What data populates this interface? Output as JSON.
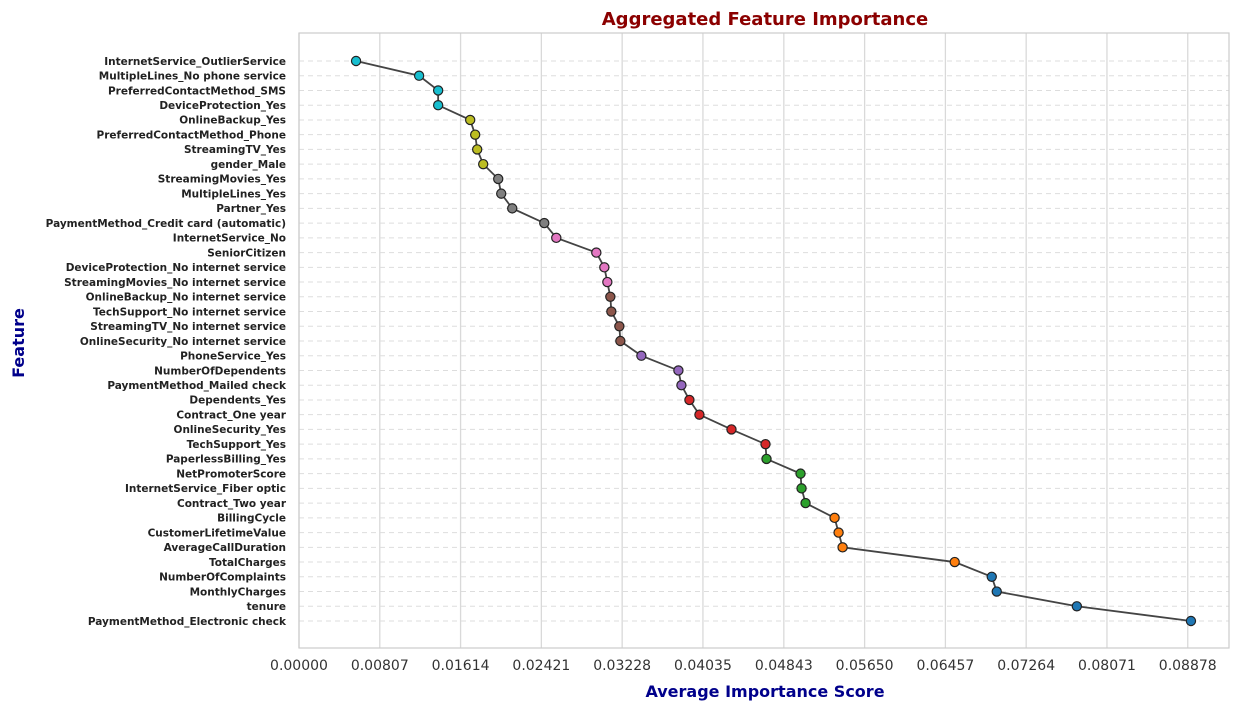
{
  "chart_data": {
    "type": "scatter",
    "title": "Aggregated Feature Importance",
    "xlabel": "Average Importance Score",
    "ylabel": "Feature",
    "xlim": [
      0.0,
      0.0929
    ],
    "xticks": [
      "0.00000",
      "0.00807",
      "0.01614",
      "0.02421",
      "0.03228",
      "0.04035",
      "0.04843",
      "0.05650",
      "0.06457",
      "0.07264",
      "0.08071",
      "0.08878"
    ],
    "grid": true,
    "connecting_line": true,
    "features": [
      {
        "name": "InternetService_OutlierService",
        "value": 0.0057,
        "color": "#17becf"
      },
      {
        "name": "MultipleLines_No phone service",
        "value": 0.012,
        "color": "#17becf"
      },
      {
        "name": "PreferredContactMethod_SMS",
        "value": 0.0139,
        "color": "#17becf"
      },
      {
        "name": "DeviceProtection_Yes",
        "value": 0.0139,
        "color": "#17becf"
      },
      {
        "name": "OnlineBackup_Yes",
        "value": 0.0171,
        "color": "#bcbd22"
      },
      {
        "name": "PreferredContactMethod_Phone",
        "value": 0.0176,
        "color": "#bcbd22"
      },
      {
        "name": "StreamingTV_Yes",
        "value": 0.0178,
        "color": "#bcbd22"
      },
      {
        "name": "gender_Male",
        "value": 0.0184,
        "color": "#bcbd22"
      },
      {
        "name": "StreamingMovies_Yes",
        "value": 0.0199,
        "color": "#7f7f7f"
      },
      {
        "name": "MultipleLines_Yes",
        "value": 0.0202,
        "color": "#7f7f7f"
      },
      {
        "name": "Partner_Yes",
        "value": 0.0213,
        "color": "#7f7f7f"
      },
      {
        "name": "PaymentMethod_Credit card (automatic)",
        "value": 0.0245,
        "color": "#7f7f7f"
      },
      {
        "name": "InternetService_No",
        "value": 0.0257,
        "color": "#e377c2"
      },
      {
        "name": "SeniorCitizen",
        "value": 0.0297,
        "color": "#e377c2"
      },
      {
        "name": "DeviceProtection_No internet service",
        "value": 0.0305,
        "color": "#e377c2"
      },
      {
        "name": "StreamingMovies_No internet service",
        "value": 0.0308,
        "color": "#e377c2"
      },
      {
        "name": "OnlineBackup_No internet service",
        "value": 0.0311,
        "color": "#8c564b"
      },
      {
        "name": "TechSupport_No internet service",
        "value": 0.0312,
        "color": "#8c564b"
      },
      {
        "name": "StreamingTV_No internet service",
        "value": 0.032,
        "color": "#8c564b"
      },
      {
        "name": "OnlineSecurity_No internet service",
        "value": 0.0321,
        "color": "#8c564b"
      },
      {
        "name": "PhoneService_Yes",
        "value": 0.0342,
        "color": "#9467bd"
      },
      {
        "name": "NumberOfDependents",
        "value": 0.0379,
        "color": "#9467bd"
      },
      {
        "name": "PaymentMethod_Mailed check",
        "value": 0.0382,
        "color": "#9467bd"
      },
      {
        "name": "Dependents_Yes",
        "value": 0.039,
        "color": "#d62728"
      },
      {
        "name": "Contract_One year",
        "value": 0.04,
        "color": "#d62728"
      },
      {
        "name": "OnlineSecurity_Yes",
        "value": 0.0432,
        "color": "#d62728"
      },
      {
        "name": "TechSupport_Yes",
        "value": 0.0466,
        "color": "#d62728"
      },
      {
        "name": "PaperlessBilling_Yes",
        "value": 0.0467,
        "color": "#2ca02c"
      },
      {
        "name": "NetPromoterScore",
        "value": 0.0501,
        "color": "#2ca02c"
      },
      {
        "name": "InternetService_Fiber optic",
        "value": 0.0502,
        "color": "#2ca02c"
      },
      {
        "name": "Contract_Two year",
        "value": 0.0506,
        "color": "#2ca02c"
      },
      {
        "name": "BillingCycle",
        "value": 0.0535,
        "color": "#ff7f0e"
      },
      {
        "name": "CustomerLifetimeValue",
        "value": 0.0539,
        "color": "#ff7f0e"
      },
      {
        "name": "AverageCallDuration",
        "value": 0.0543,
        "color": "#ff7f0e"
      },
      {
        "name": "TotalCharges",
        "value": 0.0655,
        "color": "#ff7f0e"
      },
      {
        "name": "NumberOfComplaints",
        "value": 0.0692,
        "color": "#1f77b4"
      },
      {
        "name": "MonthlyCharges",
        "value": 0.0697,
        "color": "#1f77b4"
      },
      {
        "name": "tenure",
        "value": 0.0777,
        "color": "#1f77b4"
      },
      {
        "name": "PaymentMethod_Electronic check",
        "value": 0.0891,
        "color": "#1f77b4"
      }
    ]
  }
}
